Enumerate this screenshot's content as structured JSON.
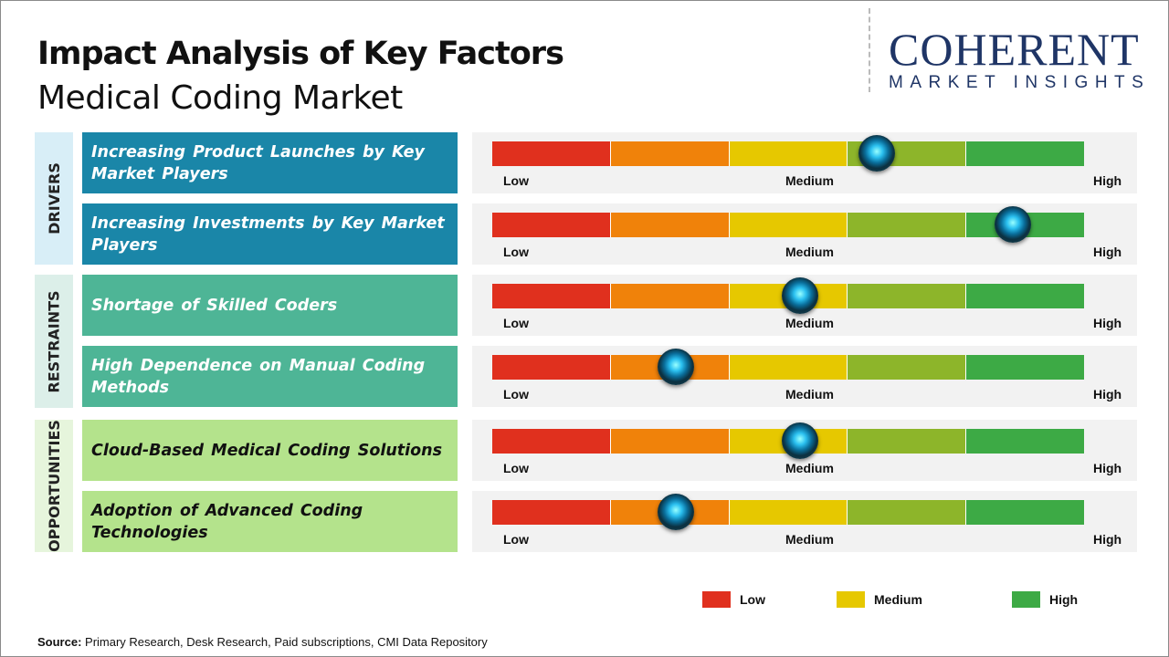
{
  "title": "Impact Analysis of Key Factors",
  "subtitle": "Medical Coding Market",
  "logo": {
    "main": "COHERENT",
    "sub": "MARKET INSIGHTS"
  },
  "scale_labels": {
    "low": "Low",
    "medium": "Medium",
    "high": "High"
  },
  "scale_colors": [
    "#e0301e",
    "#f0820a",
    "#e6c800",
    "#8db52a",
    "#3daa45"
  ],
  "categories": [
    {
      "label": "DRIVERS",
      "bg": "#d8eef7",
      "box": "#1a86a8",
      "text": "#ffffff"
    },
    {
      "label": "RESTRAINTS",
      "bg": "#dcefe9",
      "box": "#4eb596",
      "text": "#ffffff"
    },
    {
      "label": "OPPORTUNITIES",
      "bg": "#e6f5dc",
      "box": "#b4e38c",
      "text": "#111111"
    }
  ],
  "factors": [
    {
      "category": 0,
      "label": "Increasing Product Launches by Key Market Players",
      "impact": 0.65
    },
    {
      "category": 0,
      "label": "Increasing Investments by Key Market Players",
      "impact": 0.88
    },
    {
      "category": 1,
      "label": "Shortage of Skilled Coders",
      "impact": 0.52
    },
    {
      "category": 1,
      "label": "High Dependence on Manual Coding Methods",
      "impact": 0.31
    },
    {
      "category": 2,
      "label": "Cloud-Based Medical Coding Solutions",
      "impact": 0.52
    },
    {
      "category": 2,
      "label": "Adoption of Advanced Coding Technologies",
      "impact": 0.31
    }
  ],
  "legend": [
    {
      "label": "Low",
      "color": "#e0301e"
    },
    {
      "label": "Medium",
      "color": "#e6c800"
    },
    {
      "label": "High",
      "color": "#3daa45"
    }
  ],
  "source": {
    "label": "Source:",
    "text": " Primary Research, Desk Research, Paid subscriptions, CMI Data Repository"
  }
}
